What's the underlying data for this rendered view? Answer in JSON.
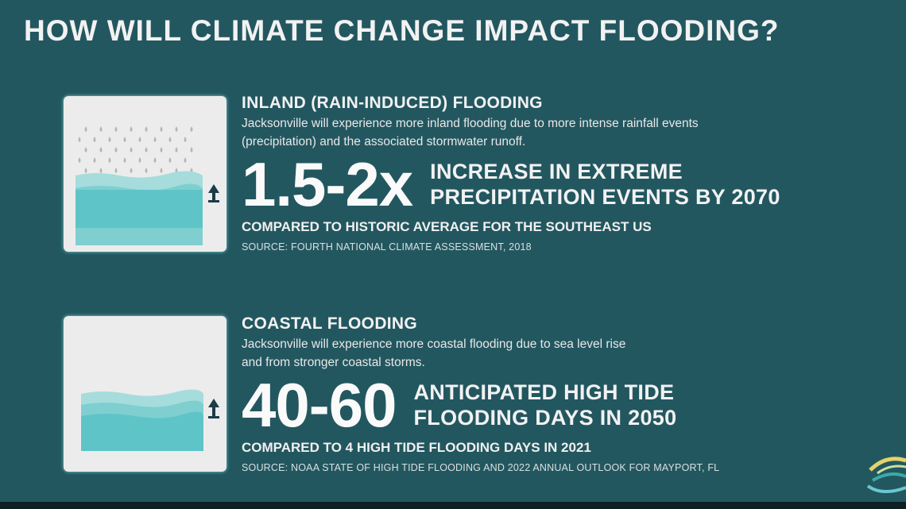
{
  "title": "HOW WILL CLIMATE CHANGE IMPACT FLOODING?",
  "colors": {
    "background": "#235760",
    "water_light": "#a6dcdc",
    "water_mid": "#7fcfd0",
    "water_dark": "#5ec4c8",
    "card": "#ececec",
    "arrow": "#1c3c46"
  },
  "sections": [
    {
      "icon": "rain-flood-rising-icon",
      "heading": "INLAND (RAIN-INDUCED) FLOODING",
      "description_line1": "Jacksonville will experience more inland flooding due to more intense rainfall events",
      "description_line2": "(precipitation) and the associated stormwater runoff.",
      "stat": "1.5-2x",
      "stat_label_line1": "INCREASE IN EXTREME",
      "stat_label_line2": "PRECIPITATION EVENTS BY 2070",
      "comparison": "COMPARED TO HISTORIC AVERAGE FOR THE SOUTHEAST US",
      "source": "SOURCE: FOURTH NATIONAL CLIMATE ASSESSMENT, 2018"
    },
    {
      "icon": "sea-level-rising-icon",
      "heading": "COASTAL FLOODING",
      "description_line1": "Jacksonville will experience more coastal flooding due to sea level rise",
      "description_line2": "and from stronger coastal storms.",
      "stat": "40-60",
      "stat_label_line1": "ANTICIPATED HIGH TIDE",
      "stat_label_line2": "FLOODING DAYS IN 2050",
      "comparison": "COMPARED TO 4 HIGH TIDE FLOODING DAYS IN 2021",
      "source": "SOURCE: NOAA STATE OF HIGH TIDE FLOODING AND 2022 ANNUAL OUTLOOK FOR MAYPORT, FL"
    }
  ]
}
